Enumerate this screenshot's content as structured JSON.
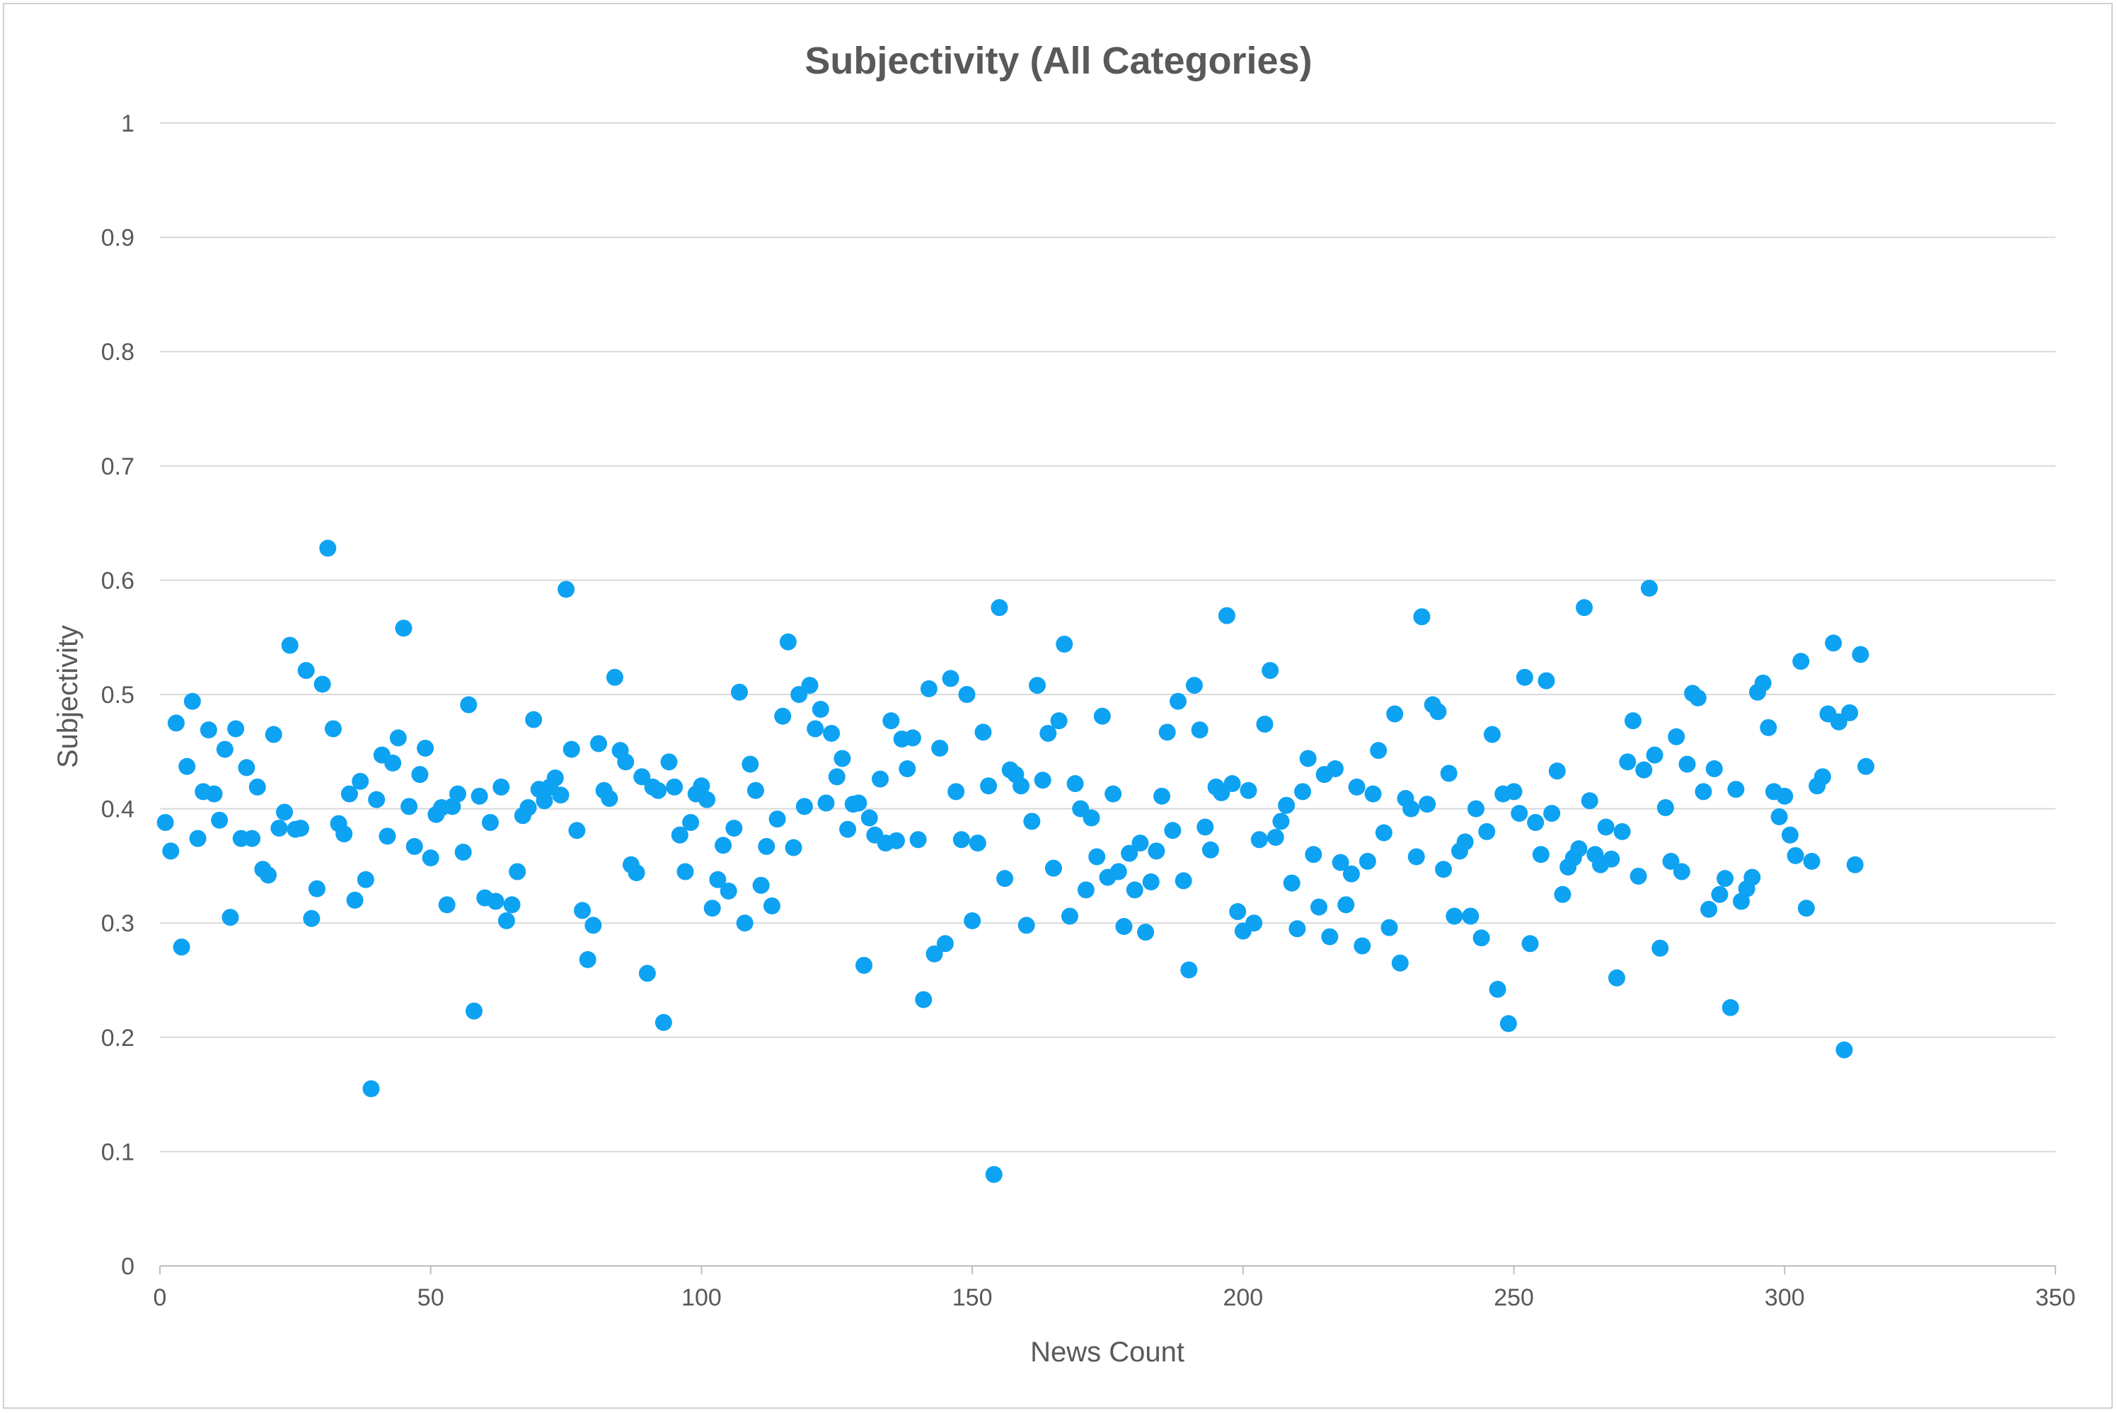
{
  "chart_data": {
    "type": "scatter",
    "title": "Subjectivity (All Categories)",
    "xlabel": "News Count",
    "ylabel": "Subjectivity",
    "xlim": [
      0,
      350
    ],
    "ylim": [
      0,
      1
    ],
    "x_ticks": [
      "0",
      "50",
      "100",
      "150",
      "200",
      "250",
      "300",
      "350"
    ],
    "y_ticks": [
      "0",
      "0.1",
      "0.2",
      "0.3",
      "0.4",
      "0.5",
      "0.6",
      "0.7",
      "0.8",
      "0.9",
      "1"
    ],
    "grid": true,
    "legend": "none",
    "marker_color": "#0ea2f2",
    "series": [
      {
        "x": [
          1,
          2,
          3,
          4,
          5,
          6,
          7,
          8,
          9,
          10,
          11,
          12,
          13,
          14,
          15,
          16,
          17,
          18,
          19,
          20,
          21,
          22,
          23,
          24,
          25,
          26,
          27,
          28,
          29,
          30,
          31,
          32,
          33,
          34,
          35,
          36,
          37,
          38,
          39,
          40,
          41,
          42,
          43,
          44,
          45,
          46,
          47,
          48,
          49,
          50,
          51,
          52,
          53,
          54,
          55,
          56,
          57,
          58,
          59,
          60,
          61,
          62,
          63,
          64,
          65,
          66,
          67,
          68,
          69,
          70,
          71,
          72,
          73,
          74,
          75,
          76,
          77,
          78,
          79,
          80,
          81,
          82,
          83,
          84,
          85,
          86,
          87,
          88,
          89,
          90,
          91,
          92,
          93,
          94,
          95,
          96,
          97,
          98,
          99,
          100,
          101,
          102,
          103,
          104,
          105,
          106,
          107,
          108,
          109,
          110,
          111,
          112,
          113,
          114,
          115,
          116,
          117,
          118,
          119,
          120,
          121,
          122,
          123,
          124,
          125,
          126,
          127,
          128,
          129,
          130,
          131,
          132,
          133,
          134,
          135,
          136,
          137,
          138,
          139,
          140,
          141,
          142,
          143,
          144,
          145,
          146,
          147,
          148,
          149,
          150,
          151,
          152,
          153,
          154,
          155,
          156,
          157,
          158,
          159,
          160,
          161,
          162,
          163,
          164,
          165,
          166,
          167,
          168,
          169,
          170,
          171,
          172,
          173,
          174,
          175,
          176,
          177,
          178,
          179,
          180,
          181,
          182,
          183,
          184,
          185,
          186,
          187,
          188,
          189,
          190,
          191,
          192,
          193,
          194,
          195,
          196,
          197,
          198,
          199,
          200,
          201,
          202,
          203,
          204,
          205,
          206,
          207,
          208,
          209,
          210,
          211,
          212,
          213,
          214,
          215,
          216,
          217,
          218,
          219,
          220,
          221,
          222,
          223,
          224,
          225,
          226,
          227,
          228,
          229,
          230,
          231,
          232,
          233,
          234,
          235,
          236,
          237,
          238,
          239,
          240,
          241,
          242,
          243,
          244,
          245,
          246,
          247,
          248,
          249,
          250,
          251,
          252,
          253,
          254,
          255,
          256,
          257,
          258,
          259,
          260,
          261,
          262,
          263,
          264,
          265,
          266,
          267,
          268,
          269,
          270,
          271,
          272,
          273,
          274,
          275,
          276,
          277,
          278,
          279,
          280,
          281,
          282,
          283,
          284,
          285,
          286,
          287,
          288,
          289,
          290,
          291,
          292,
          293,
          294,
          295,
          296,
          297,
          298,
          299,
          300,
          301,
          302,
          303,
          304,
          305,
          306,
          307,
          308,
          309,
          310,
          311,
          312,
          313,
          314,
          315
        ],
        "y": [
          0.388,
          0.363,
          0.475,
          0.279,
          0.437,
          0.494,
          0.374,
          0.415,
          0.469,
          0.413,
          0.39,
          0.452,
          0.305,
          0.47,
          0.374,
          0.436,
          0.374,
          0.419,
          0.347,
          0.342,
          0.465,
          0.383,
          0.397,
          0.543,
          0.382,
          0.383,
          0.521,
          0.304,
          0.33,
          0.509,
          0.628,
          0.47,
          0.387,
          0.378,
          0.413,
          0.32,
          0.424,
          0.338,
          0.155,
          0.408,
          0.447,
          0.376,
          0.44,
          0.462,
          0.558,
          0.402,
          0.367,
          0.43,
          0.453,
          0.357,
          0.395,
          0.401,
          0.316,
          0.402,
          0.413,
          0.362,
          0.491,
          0.223,
          0.411,
          0.322,
          0.388,
          0.319,
          0.419,
          0.302,
          0.316,
          0.345,
          0.394,
          0.401,
          0.478,
          0.417,
          0.407,
          0.419,
          0.427,
          0.412,
          0.592,
          0.452,
          0.381,
          0.311,
          0.268,
          0.298,
          0.457,
          0.416,
          0.409,
          0.515,
          0.451,
          0.441,
          0.351,
          0.344,
          0.428,
          0.256,
          0.419,
          0.416,
          0.213,
          0.441,
          0.419,
          0.377,
          0.345,
          0.388,
          0.413,
          0.42,
          0.408,
          0.313,
          0.338,
          0.368,
          0.328,
          0.383,
          0.502,
          0.3,
          0.439,
          0.416,
          0.333,
          0.367,
          0.315,
          0.391,
          0.481,
          0.546,
          0.366,
          0.5,
          0.402,
          0.508,
          0.47,
          0.487,
          0.405,
          0.466,
          0.428,
          0.444,
          0.382,
          0.404,
          0.405,
          0.263,
          0.392,
          0.377,
          0.426,
          0.37,
          0.477,
          0.372,
          0.461,
          0.435,
          0.462,
          0.373,
          0.233,
          0.505,
          0.273,
          0.453,
          0.282,
          0.514,
          0.415,
          0.373,
          0.5,
          0.302,
          0.37,
          0.467,
          0.42,
          0.08,
          0.576,
          0.339,
          0.434,
          0.43,
          0.42,
          0.298,
          0.389,
          0.508,
          0.425,
          0.466,
          0.348,
          0.477,
          0.544,
          0.306,
          0.422,
          0.4,
          0.329,
          0.392,
          0.358,
          0.481,
          0.34,
          0.413,
          0.345,
          0.297,
          0.361,
          0.329,
          0.37,
          0.292,
          0.336,
          0.363,
          0.411,
          0.467,
          0.381,
          0.494,
          0.337,
          0.259,
          0.508,
          0.469,
          0.384,
          0.364,
          0.419,
          0.414,
          0.569,
          0.422,
          0.31,
          0.293,
          0.416,
          0.3,
          0.373,
          0.474,
          0.521,
          0.375,
          0.389,
          0.403,
          0.335,
          0.295,
          0.415,
          0.444,
          0.36,
          0.314,
          0.43,
          0.288,
          0.435,
          0.353,
          0.316,
          0.343,
          0.419,
          0.28,
          0.354,
          0.413,
          0.451,
          0.379,
          0.296,
          0.483,
          0.265,
          0.409,
          0.4,
          0.358,
          0.568,
          0.404,
          0.491,
          0.485,
          0.347,
          0.431,
          0.306,
          0.363,
          0.371,
          0.306,
          0.4,
          0.287,
          0.38,
          0.465,
          0.242,
          0.413,
          0.212,
          0.415,
          0.396,
          0.515,
          0.282,
          0.388,
          0.36,
          0.512,
          0.396,
          0.433,
          0.325,
          0.349,
          0.357,
          0.365,
          0.576,
          0.407,
          0.36,
          0.351,
          0.384,
          0.356,
          0.252,
          0.38,
          0.441,
          0.477,
          0.341,
          0.434,
          0.593,
          0.447,
          0.278,
          0.401,
          0.354,
          0.463,
          0.345,
          0.439,
          0.501,
          0.497,
          0.415,
          0.312,
          0.435,
          0.325,
          0.339,
          0.226,
          0.417,
          0.319,
          0.33,
          0.34,
          0.502,
          0.51,
          0.471,
          0.415,
          0.393,
          0.411,
          0.377,
          0.359,
          0.529,
          0.313,
          0.354,
          0.42,
          0.428,
          0.483,
          0.545,
          0.476,
          0.189,
          0.484,
          0.351,
          0.535,
          0.437
        ]
      }
    ]
  }
}
